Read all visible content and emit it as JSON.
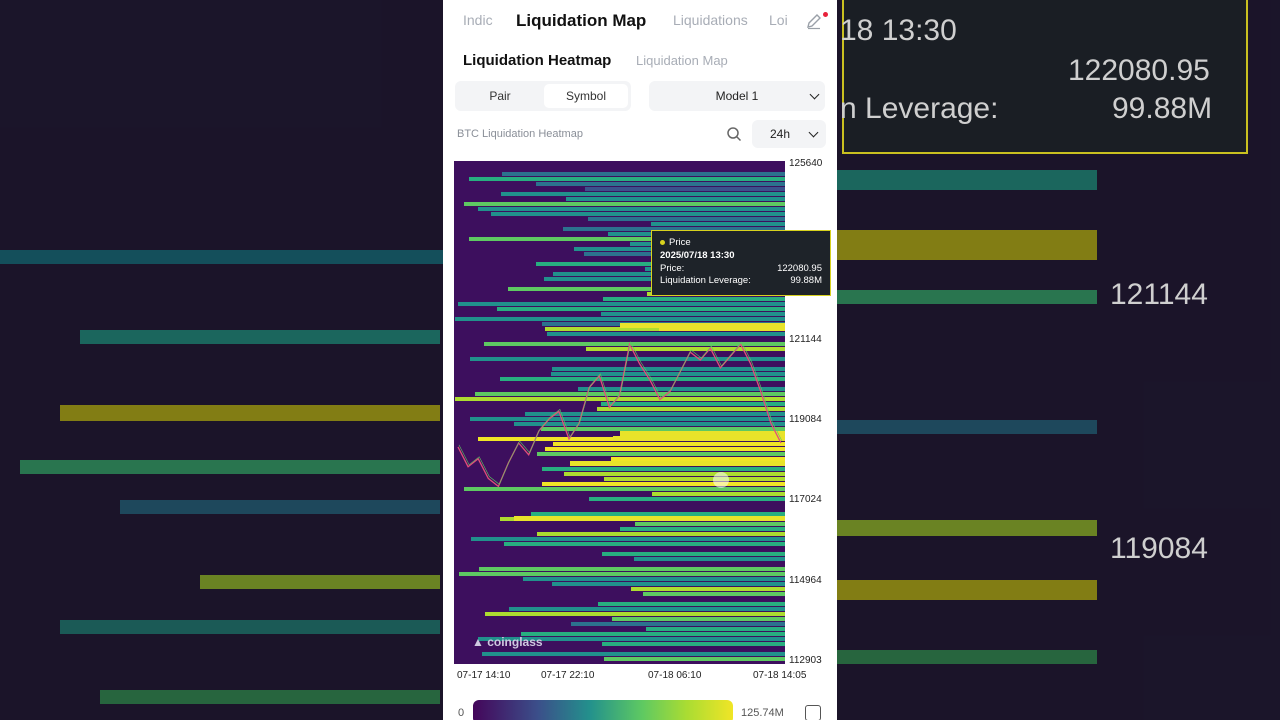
{
  "tabs": [
    "Indic",
    "Liquidation Map",
    "Liquidations",
    "Loi"
  ],
  "subtabs": [
    "Liquidation Heatmap",
    "Liquidation Map"
  ],
  "segment": {
    "options": [
      "Pair",
      "Symbol"
    ],
    "selected": "Symbol"
  },
  "model_select": {
    "value": "Model 1"
  },
  "heatmap_title": "BTC Liquidation Heatmap",
  "period": "24h",
  "y_ticks": [
    "125640",
    "121144",
    "119084",
    "117024",
    "114964",
    "112903"
  ],
  "x_ticks": [
    "07-17 14:10",
    "07-17 22:10",
    "07-18 06:10",
    "07-18 14:05"
  ],
  "tooltip": {
    "series": "Price",
    "time": "2025/07/18 13:30",
    "price_label": "Price:",
    "price": "122080.95",
    "leverage_label": "Liquidation Leverage:",
    "leverage": "99.88M"
  },
  "watermark": "coinglass",
  "legend": {
    "min": "0",
    "max": "125.74M"
  },
  "background": {
    "time": "18 13:30",
    "price": "122080.95",
    "leverage_label": "n Leverage:",
    "leverage": "99.88M",
    "tick1": "121144",
    "tick2": "119084"
  },
  "colors": {
    "heat_low": "#440154",
    "heat_high": "#f0e526",
    "accent": "#d8d21e"
  },
  "chart_data": {
    "type": "heatmap",
    "title": "BTC Liquidation Heatmap",
    "ylim": [
      112903,
      125640
    ],
    "x_ticks": [
      "07-17 14:10",
      "07-17 22:10",
      "07-18 06:10",
      "07-18 14:05"
    ],
    "y_ticks": [
      125640,
      121144,
      119084,
      117024,
      114964,
      112903
    ],
    "colorscale": {
      "min": "0",
      "max": "125.74M"
    },
    "price_line": [
      118400,
      117900,
      118100,
      117600,
      117400,
      118000,
      118500,
      118200,
      118800,
      119100,
      119300,
      118600,
      119000,
      119900,
      120200,
      119400,
      119700,
      121000,
      120500,
      120100,
      119600,
      119800,
      120300,
      120800,
      120600,
      120900,
      120400,
      120700,
      121000,
      120500,
      119800,
      119000,
      118500
    ],
    "highlight": {
      "time": "2025/07/18 13:30",
      "price": 122080.95,
      "liquidation_leverage": "99.88M"
    }
  }
}
